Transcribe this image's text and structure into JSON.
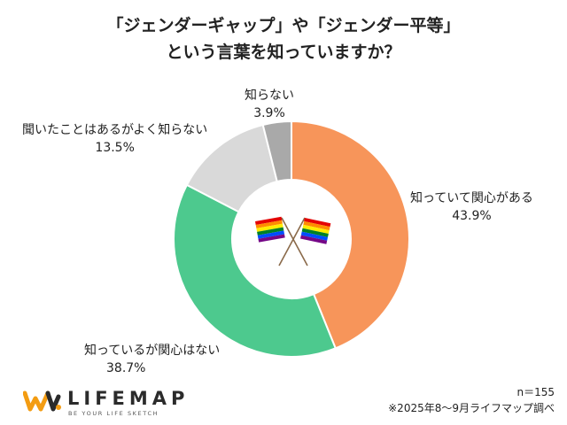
{
  "title": {
    "line1": "「ジェンダーギャップ」や「ジェンダー平等」",
    "line2": "という言葉を知っていますか？"
  },
  "chart_data": {
    "type": "pie",
    "donut": true,
    "unit": "%",
    "slices": [
      {
        "label": "知っていて関心がある",
        "value": 43.9,
        "value_label": "43.9%",
        "color": "#F7955A"
      },
      {
        "label": "知っているが関心はない",
        "value": 38.7,
        "value_label": "38.7%",
        "color": "#4DC98E"
      },
      {
        "label": "聞いたことはあるがよく知らない",
        "value": 13.5,
        "value_label": "13.5%",
        "color": "#D9D9D9"
      },
      {
        "label": "知らない",
        "value": 3.9,
        "value_label": "3.9%",
        "color": "#A9A9A9"
      }
    ],
    "start": "12 o'clock",
    "direction": "clockwise",
    "center_graphic": "crossed-rainbow-flags-icon"
  },
  "footer": {
    "sample_size": "n＝155",
    "source": "※2025年8〜9月ライフマップ調べ"
  },
  "logo": {
    "name": "LIFEMAP",
    "tagline": "BE YOUR LIFE SKETCH",
    "icon": "lifemap-logo-icon",
    "colors": {
      "orange": "#F39C12",
      "dark": "#2B2B2B"
    }
  }
}
